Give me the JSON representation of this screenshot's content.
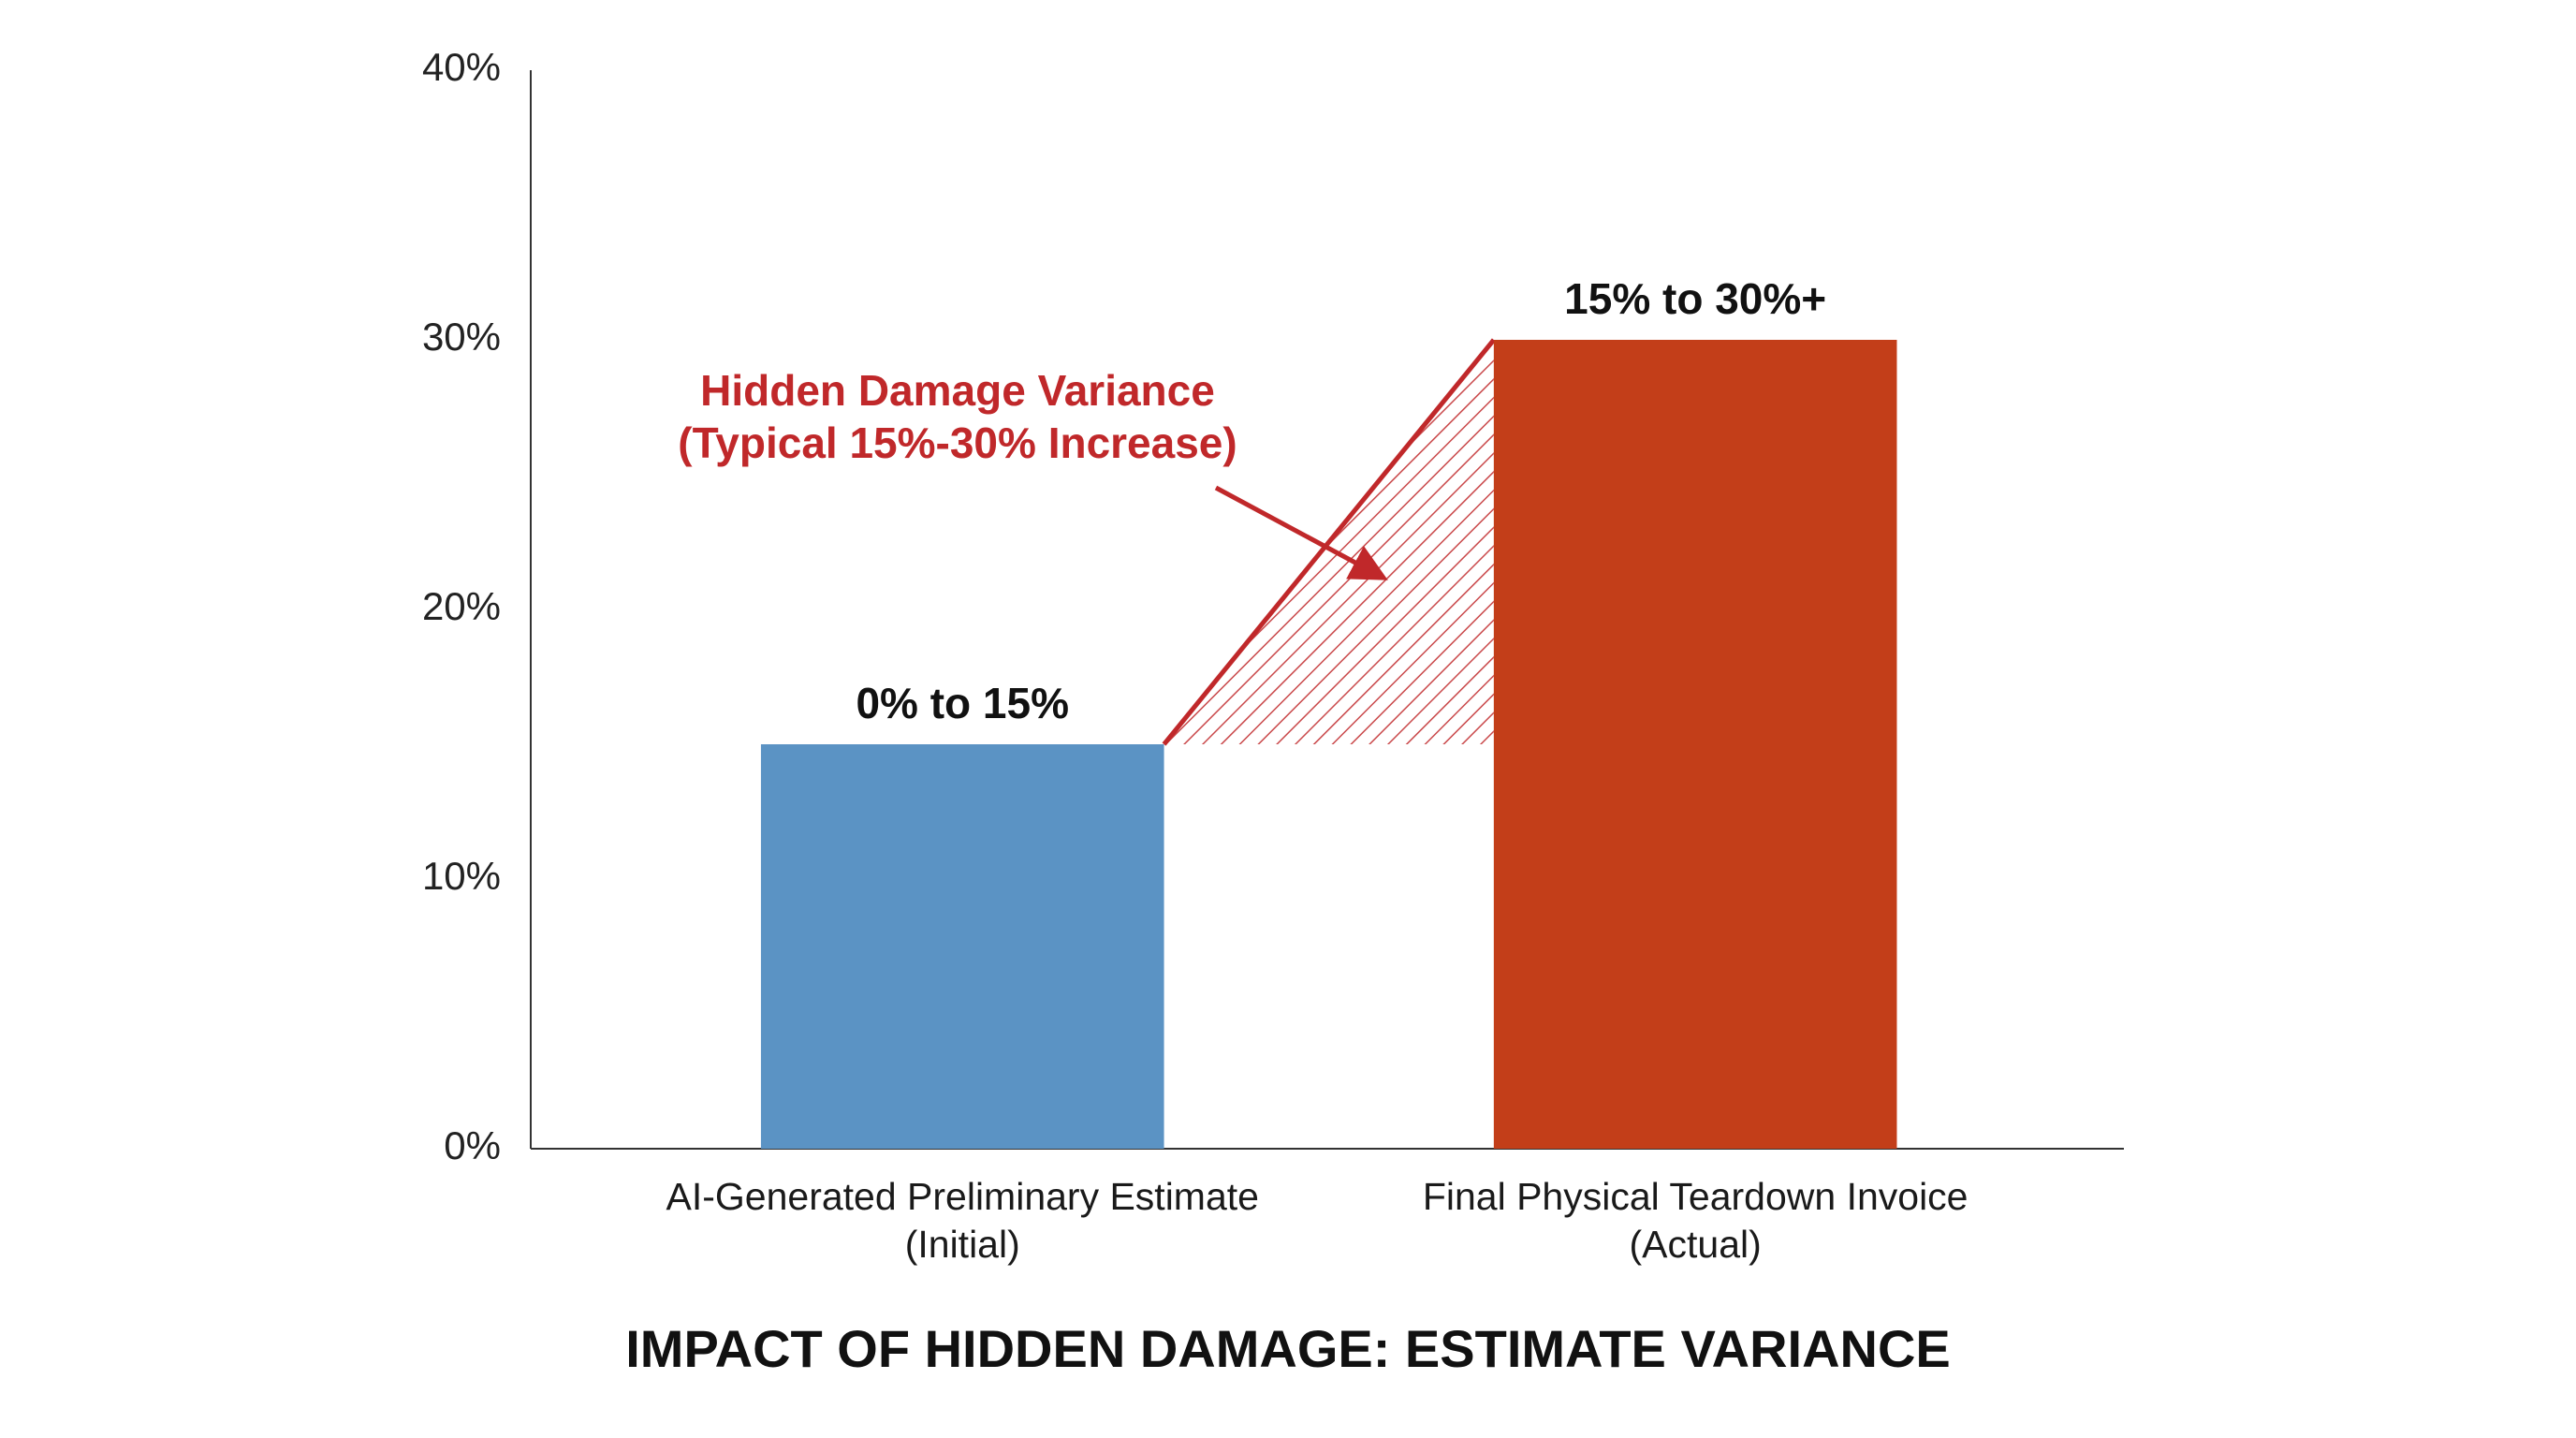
{
  "chart_data": {
    "type": "bar",
    "title": "IMPACT OF HIDDEN DAMAGE: ESTIMATE VARIANCE",
    "categories": [
      "AI-Generated Preliminary Estimate (Initial)",
      "Final Physical Teardown Invoice (Actual)"
    ],
    "values": [
      15,
      30
    ],
    "value_labels": [
      "0% to 15%",
      "15% to 30%+"
    ],
    "colors": [
      "#5b93c4",
      "#c33e19"
    ],
    "ylim": [
      0,
      40
    ],
    "yticks": [
      {
        "value": 0,
        "label": "0%"
      },
      {
        "value": 10,
        "label": "10%"
      },
      {
        "value": 20,
        "label": "20%"
      },
      {
        "value": 30,
        "label": "30%"
      },
      {
        "value": 40,
        "label": "40%"
      }
    ],
    "grid": false,
    "annotation": [
      "Hidden Damage Variance",
      "(Typical 15%-30% Increase)"
    ],
    "annotation_color": "#c0282a"
  }
}
